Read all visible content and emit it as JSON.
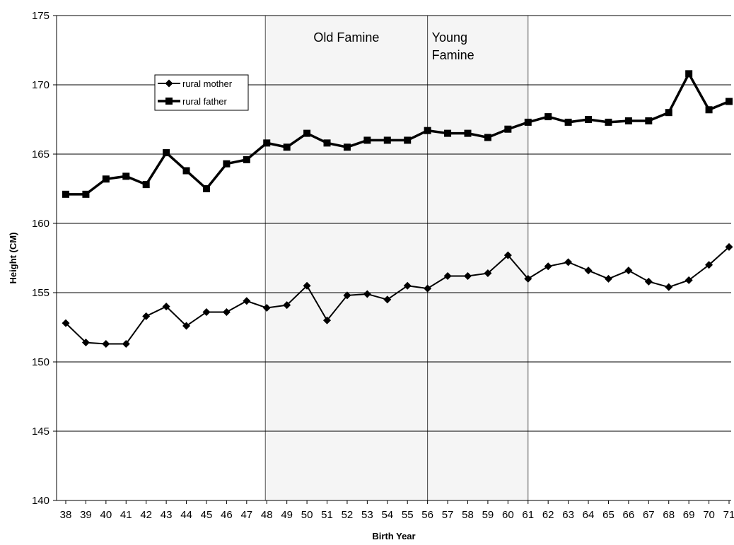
{
  "chart_data": {
    "type": "line",
    "xlabel": "Birth Year",
    "ylabel": "Height (CM)",
    "ylim": [
      140,
      175
    ],
    "yticks": [
      140,
      145,
      150,
      155,
      160,
      165,
      170,
      175
    ],
    "grid": true,
    "legend_position": "top-left",
    "categories": [
      "38",
      "39",
      "40",
      "41",
      "42",
      "43",
      "44",
      "45",
      "46",
      "47",
      "48",
      "49",
      "50",
      "51",
      "52",
      "53",
      "54",
      "55",
      "56",
      "57",
      "58",
      "59",
      "60",
      "61",
      "62",
      "63",
      "64",
      "65",
      "66",
      "67",
      "68",
      "69",
      "70",
      "71"
    ],
    "series": [
      {
        "name": "rural mother",
        "marker": "diamond",
        "color": "#000000",
        "values": [
          152.8,
          151.4,
          151.3,
          151.3,
          153.3,
          154.0,
          152.6,
          153.6,
          153.6,
          154.4,
          153.9,
          154.1,
          155.5,
          153.0,
          154.8,
          154.9,
          154.5,
          155.5,
          155.3,
          156.2,
          156.2,
          156.4,
          157.7,
          156.0,
          156.9,
          157.2,
          156.6,
          156.0,
          156.6,
          155.8,
          155.4,
          155.9,
          157.0,
          158.3
        ]
      },
      {
        "name": "rural father",
        "marker": "square",
        "color": "#000000",
        "values": [
          162.1,
          162.1,
          163.2,
          163.4,
          162.8,
          165.1,
          163.8,
          162.5,
          164.3,
          164.6,
          165.8,
          165.5,
          166.5,
          165.8,
          165.5,
          166.0,
          166.0,
          166.0,
          166.7,
          166.5,
          166.5,
          166.2,
          166.8,
          167.3,
          167.7,
          167.3,
          167.5,
          167.3,
          167.4,
          167.4,
          168.0,
          170.8,
          168.2,
          168.8
        ]
      }
    ],
    "shaded_regions": [
      {
        "label": "Old Famine",
        "from": "48",
        "to": "56",
        "color": "#f5f5f5"
      },
      {
        "label": "Young Famine",
        "from": "56",
        "to": "61",
        "color": "#f5f5f5"
      }
    ]
  }
}
